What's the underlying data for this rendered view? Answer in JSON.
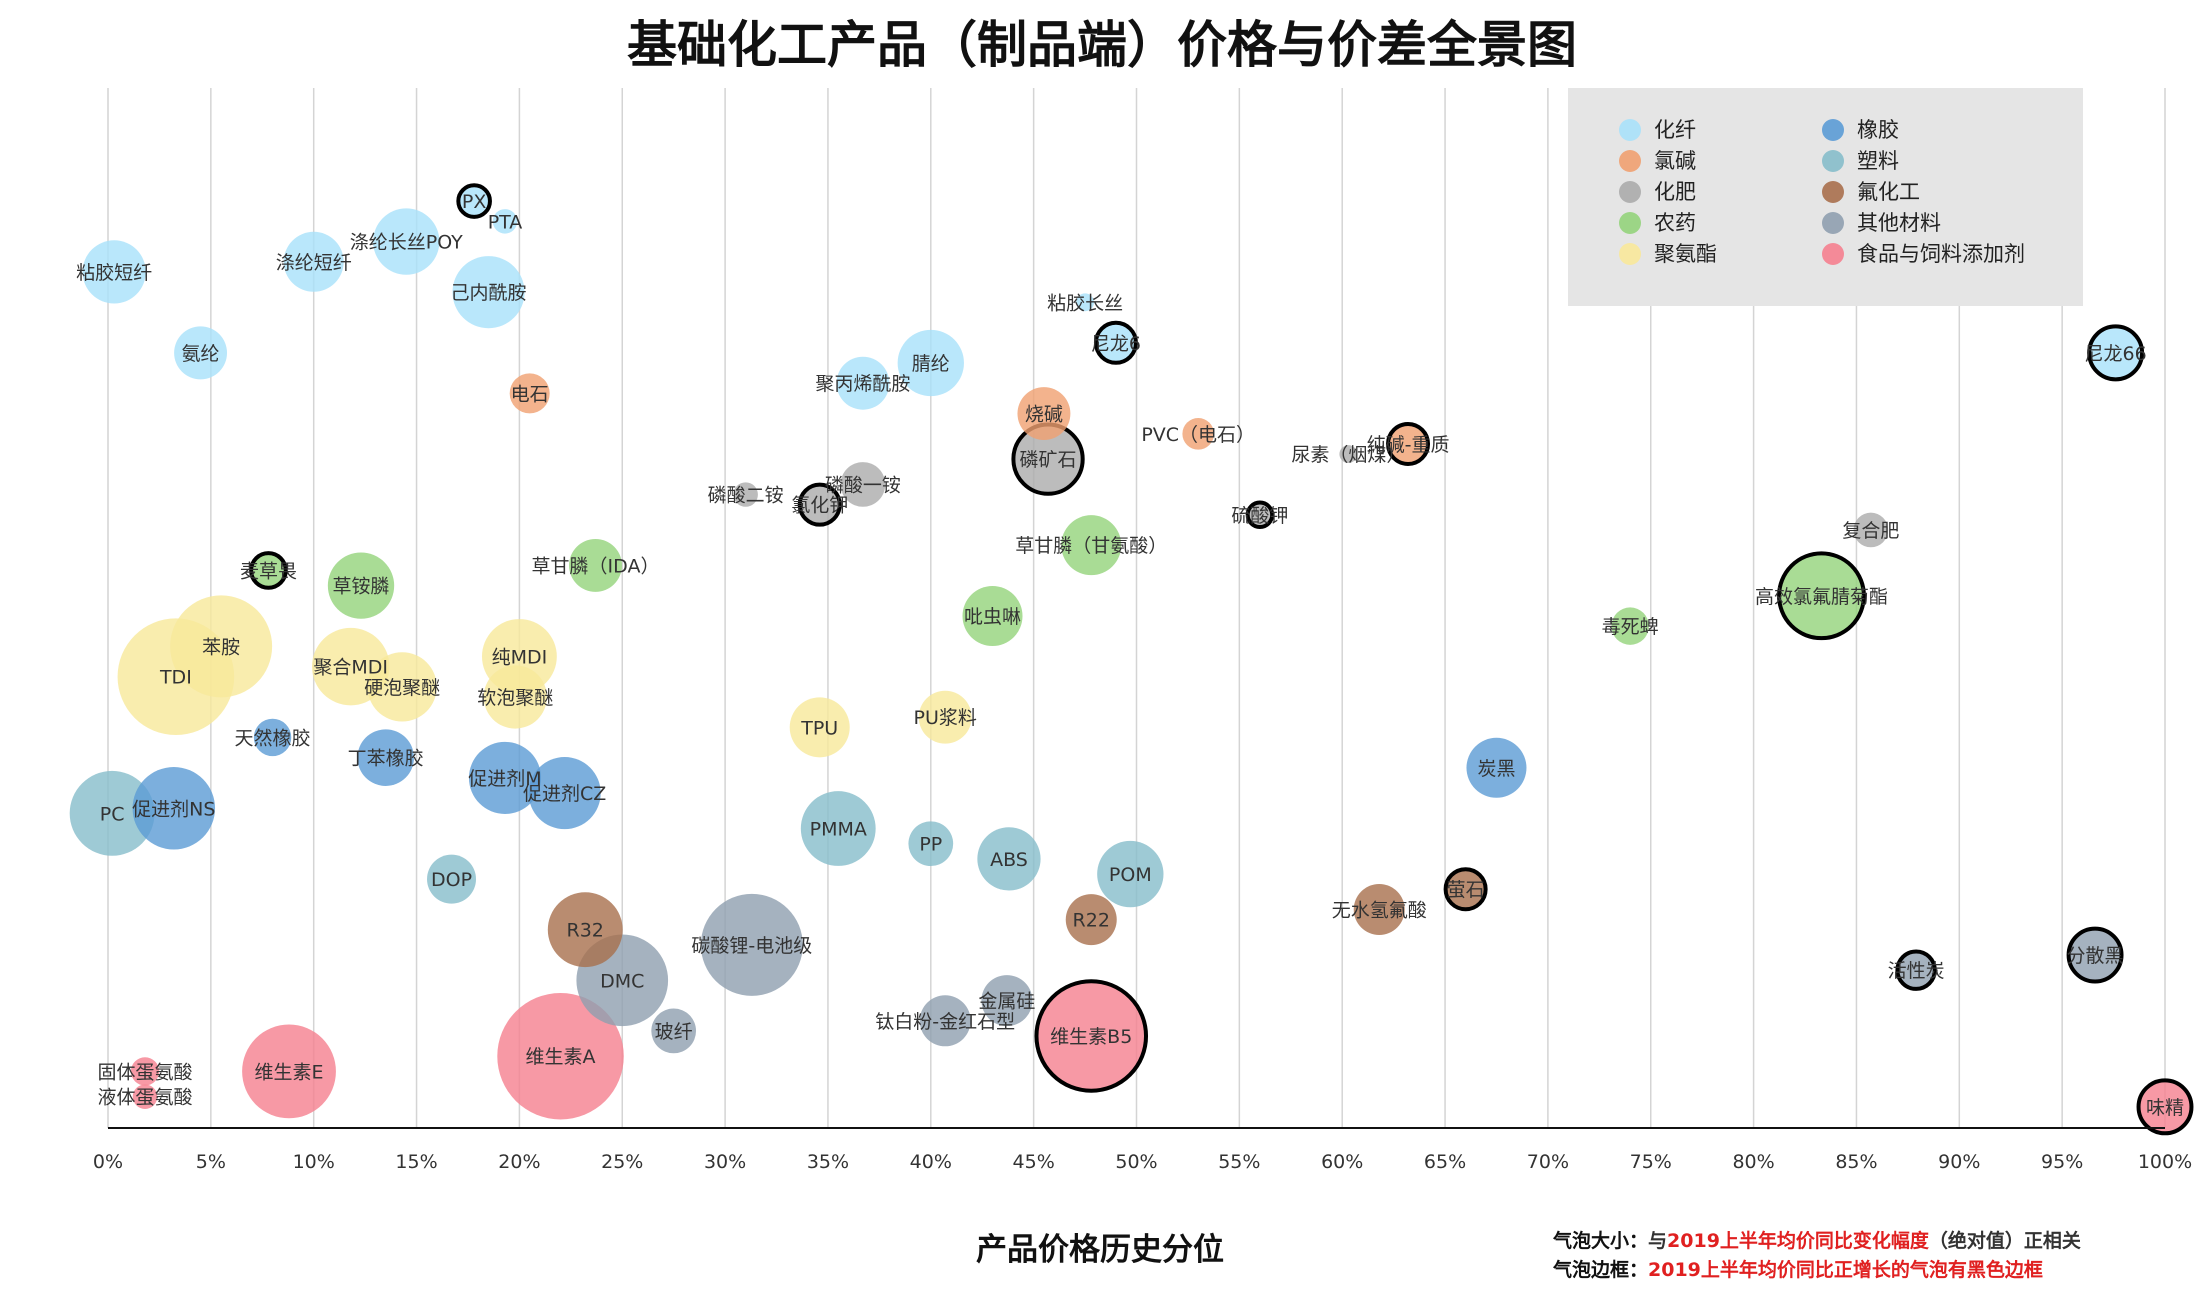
{
  "chart_data": {
    "type": "scatter",
    "title": "基础化工产品（制品端）价格与价差全景图",
    "xlabel": "产品价格历史分位",
    "xlim": [
      0,
      100
    ],
    "xticks": [
      "0%",
      "5%",
      "10%",
      "15%",
      "20%",
      "25%",
      "30%",
      "35%",
      "40%",
      "45%",
      "50%",
      "55%",
      "60%",
      "65%",
      "70%",
      "75%",
      "80%",
      "85%",
      "90%",
      "95%",
      "100%"
    ],
    "grid": "vertical",
    "legend_position": "top-right",
    "colors": {
      "化纤": "#a8e1fa",
      "氯碱": "#f0a070",
      "化肥": "#ababab",
      "农药": "#93d37b",
      "聚氨酯": "#f8e89a",
      "橡胶": "#5b9bd5",
      "塑料": "#86bdca",
      "氟化工": "#a86f4c",
      "其他材料": "#8f9faf",
      "食品与饲料添加剂": "#f57f8f"
    },
    "legend": [
      {
        "key": "化纤",
        "label": "化纤"
      },
      {
        "key": "氯碱",
        "label": "氯碱"
      },
      {
        "key": "化肥",
        "label": "化肥"
      },
      {
        "key": "农药",
        "label": "农药"
      },
      {
        "key": "聚氨酯",
        "label": "聚氨酯"
      },
      {
        "key": "橡胶",
        "label": "橡胶"
      },
      {
        "key": "塑料",
        "label": "塑料"
      },
      {
        "key": "氟化工",
        "label": "氟化工"
      },
      {
        "key": "其他材料",
        "label": "其他材料"
      },
      {
        "key": "食品与饲料添加剂",
        "label": "食品与饲料添加剂"
      }
    ],
    "points": [
      {
        "label": "粘胶短纤",
        "series": "化纤",
        "x": 0.3,
        "y": 84,
        "size": 10,
        "border": false
      },
      {
        "label": "涤纶短纤",
        "series": "化纤",
        "x": 10,
        "y": 85,
        "size": 9,
        "border": false
      },
      {
        "label": "涤纶长丝POY",
        "series": "化纤",
        "x": 14.5,
        "y": 87,
        "size": 11,
        "border": false
      },
      {
        "label": "PX",
        "series": "化纤",
        "x": 17.8,
        "y": 91,
        "size": 2.5,
        "border": true
      },
      {
        "label": "PTA",
        "series": "化纤",
        "x": 19.3,
        "y": 89,
        "size": 1.5,
        "border": false
      },
      {
        "label": "己内酰胺",
        "series": "化纤",
        "x": 18.5,
        "y": 82,
        "size": 13,
        "border": false
      },
      {
        "label": "氨纶",
        "series": "化纤",
        "x": 4.5,
        "y": 76,
        "size": 7,
        "border": false
      },
      {
        "label": "聚丙烯酰胺",
        "series": "化纤",
        "x": 36.7,
        "y": 73,
        "size": 7,
        "border": false
      },
      {
        "label": "腈纶",
        "series": "化纤",
        "x": 40,
        "y": 75,
        "size": 11,
        "border": false
      },
      {
        "label": "粘胶长丝",
        "series": "化纤",
        "x": 47.5,
        "y": 81,
        "size": 0.8,
        "border": false
      },
      {
        "label": "尼龙6",
        "series": "化纤",
        "x": 49,
        "y": 77,
        "size": 4,
        "border": true
      },
      {
        "label": "尼龙66",
        "series": "化纤",
        "x": 97.6,
        "y": 76,
        "size": 7,
        "border": true
      },
      {
        "label": "电石",
        "series": "氯碱",
        "x": 20.5,
        "y": 72,
        "size": 4,
        "border": false
      },
      {
        "label": "烧碱",
        "series": "氯碱",
        "x": 45.5,
        "y": 70,
        "size": 7,
        "border": false
      },
      {
        "label": "PVC（电石）",
        "series": "氯碱",
        "x": 53,
        "y": 68,
        "size": 2.5,
        "border": false
      },
      {
        "label": "纯碱-重质",
        "series": "氯碱",
        "x": 63.2,
        "y": 67,
        "size": 4,
        "border": true
      },
      {
        "label": "磷矿石",
        "series": "化肥",
        "x": 45.7,
        "y": 65.5,
        "size": 12,
        "border": true
      },
      {
        "label": "磷酸二铵",
        "series": "化肥",
        "x": 31,
        "y": 62,
        "size": 1.5,
        "border": false
      },
      {
        "label": "磷酸一铵",
        "series": "化肥",
        "x": 36.7,
        "y": 63,
        "size": 5,
        "border": false
      },
      {
        "label": "氯化钾",
        "series": "化肥",
        "x": 34.6,
        "y": 61,
        "size": 4,
        "border": true
      },
      {
        "label": "尿素（烟煤）",
        "series": "化肥",
        "x": 60.3,
        "y": 66,
        "size": 0.8,
        "border": false
      },
      {
        "label": "硫酸钾",
        "series": "化肥",
        "x": 56,
        "y": 60,
        "size": 1.5,
        "border": true
      },
      {
        "label": "复合肥",
        "series": "化肥",
        "x": 85.7,
        "y": 58.5,
        "size": 3,
        "border": false
      },
      {
        "label": "麦草畏",
        "series": "农药",
        "x": 7.8,
        "y": 54.5,
        "size": 3,
        "border": true
      },
      {
        "label": "草铵膦",
        "series": "农药",
        "x": 12.3,
        "y": 53,
        "size": 11,
        "border": false
      },
      {
        "label": "草甘膦（IDA）",
        "series": "农药",
        "x": 23.7,
        "y": 55,
        "size": 7,
        "border": false
      },
      {
        "label": "草甘膦（甘氨酸）",
        "series": "农药",
        "x": 47.8,
        "y": 57,
        "size": 9,
        "border": false
      },
      {
        "label": "吡虫啉",
        "series": "农药",
        "x": 43,
        "y": 50,
        "size": 9,
        "border": false
      },
      {
        "label": "毒死蜱",
        "series": "农药",
        "x": 74,
        "y": 49,
        "size": 3.5,
        "border": false
      },
      {
        "label": "高效氯氟腈菊酯",
        "series": "农药",
        "x": 83.3,
        "y": 52,
        "size": 18,
        "border": true
      },
      {
        "label": "苯胺",
        "series": "聚氨酯",
        "x": 5.5,
        "y": 47,
        "size": 26,
        "border": false
      },
      {
        "label": "TDI",
        "series": "聚氨酯",
        "x": 3.3,
        "y": 44,
        "size": 34,
        "border": false
      },
      {
        "label": "聚合MDI",
        "series": "聚氨酯",
        "x": 11.8,
        "y": 45,
        "size": 15,
        "border": false
      },
      {
        "label": "硬泡聚醚",
        "series": "聚氨酯",
        "x": 14.3,
        "y": 43,
        "size": 12,
        "border": false
      },
      {
        "label": "纯MDI",
        "series": "聚氨酯",
        "x": 20,
        "y": 46,
        "size": 14,
        "border": false
      },
      {
        "label": "软泡聚醚",
        "series": "聚氨酯",
        "x": 19.8,
        "y": 42,
        "size": 10,
        "border": false
      },
      {
        "label": "TPU",
        "series": "聚氨酯",
        "x": 34.6,
        "y": 39,
        "size": 9,
        "border": false
      },
      {
        "label": "PU浆料",
        "series": "聚氨酯",
        "x": 40.7,
        "y": 40,
        "size": 7,
        "border": false
      },
      {
        "label": "天然橡胶",
        "series": "橡胶",
        "x": 8,
        "y": 38,
        "size": 3.5,
        "border": false
      },
      {
        "label": "丁苯橡胶",
        "series": "橡胶",
        "x": 13.5,
        "y": 36,
        "size": 8,
        "border": false
      },
      {
        "label": "促进剂NS",
        "series": "橡胶",
        "x": 3.2,
        "y": 31,
        "size": 17,
        "border": false
      },
      {
        "label": "促进剂M",
        "series": "橡胶",
        "x": 19.3,
        "y": 34,
        "size": 13,
        "border": false
      },
      {
        "label": "促进剂CZ",
        "series": "橡胶",
        "x": 22.2,
        "y": 32.5,
        "size": 13,
        "border": false
      },
      {
        "label": "炭黑",
        "series": "橡胶",
        "x": 67.5,
        "y": 35,
        "size": 9,
        "border": false
      },
      {
        "label": "PC",
        "series": "塑料",
        "x": 0.2,
        "y": 30.5,
        "size": 18,
        "border": false
      },
      {
        "label": "PMMA",
        "series": "塑料",
        "x": 35.5,
        "y": 29,
        "size": 14,
        "border": false
      },
      {
        "label": "PP",
        "series": "塑料",
        "x": 40,
        "y": 27.5,
        "size": 5,
        "border": false
      },
      {
        "label": "ABS",
        "series": "塑料",
        "x": 43.8,
        "y": 26,
        "size": 10,
        "border": false
      },
      {
        "label": "POM",
        "series": "塑料",
        "x": 49.7,
        "y": 24.5,
        "size": 11,
        "border": false
      },
      {
        "label": "DOP",
        "series": "塑料",
        "x": 16.7,
        "y": 24,
        "size": 6,
        "border": false
      },
      {
        "label": "R32",
        "series": "氟化工",
        "x": 23.2,
        "y": 19,
        "size": 14,
        "border": false
      },
      {
        "label": "R22",
        "series": "氟化工",
        "x": 47.8,
        "y": 20,
        "size": 6.5,
        "border": false
      },
      {
        "label": "无水氢氟酸",
        "series": "氟化工",
        "x": 61.8,
        "y": 21,
        "size": 6.5,
        "border": false
      },
      {
        "label": "萤石",
        "series": "氟化工",
        "x": 66,
        "y": 23,
        "size": 4,
        "border": true
      },
      {
        "label": "碳酸锂-电池级",
        "series": "其他材料",
        "x": 31.3,
        "y": 17.5,
        "size": 26,
        "border": false
      },
      {
        "label": "DMC",
        "series": "其他材料",
        "x": 25,
        "y": 14,
        "size": 21,
        "border": false
      },
      {
        "label": "玻纤",
        "series": "其他材料",
        "x": 27.5,
        "y": 9,
        "size": 5,
        "border": false
      },
      {
        "label": "金属硅",
        "series": "其他材料",
        "x": 43.7,
        "y": 12,
        "size": 6.5,
        "border": false
      },
      {
        "label": "钛白粉-金红石型",
        "series": "其他材料",
        "x": 40.7,
        "y": 10,
        "size": 6.5,
        "border": false
      },
      {
        "label": "活性炭",
        "series": "其他材料",
        "x": 87.9,
        "y": 15,
        "size": 3.5,
        "border": true
      },
      {
        "label": "分散黑",
        "series": "其他材料",
        "x": 96.6,
        "y": 16.5,
        "size": 7,
        "border": true
      },
      {
        "label": "固体蛋氨酸",
        "series": "食品与饲料添加剂",
        "x": 1.8,
        "y": 5,
        "size": 2,
        "border": false
      },
      {
        "label": "液体蛋氨酸",
        "series": "食品与饲料添加剂",
        "x": 1.8,
        "y": 2.5,
        "size": 1.5,
        "border": false
      },
      {
        "label": "维生素E",
        "series": "食品与饲料添加剂",
        "x": 8.8,
        "y": 5,
        "size": 22,
        "border": false
      },
      {
        "label": "维生素A",
        "series": "食品与饲料添加剂",
        "x": 22,
        "y": 6.5,
        "size": 40,
        "border": false
      },
      {
        "label": "维生素B5",
        "series": "食品与饲料添加剂",
        "x": 47.8,
        "y": 8.5,
        "size": 30,
        "border": true
      },
      {
        "label": "味精",
        "series": "食品与饲料添加剂",
        "x": 100,
        "y": 1.5,
        "size": 7,
        "border": true
      }
    ],
    "notes": [
      {
        "prefix": "气泡大小：",
        "parts": [
          {
            "text": "与",
            "color": "#333333"
          },
          {
            "text": "2019上半年均价同比变化幅度",
            "color": "#e02020"
          },
          {
            "text": "（绝对值）正相关",
            "color": "#333333"
          }
        ]
      },
      {
        "prefix": "气泡边框：",
        "parts": [
          {
            "text": "2019上半年均价同比正增长的气泡有黑色边框",
            "color": "#e02020"
          }
        ]
      }
    ]
  }
}
